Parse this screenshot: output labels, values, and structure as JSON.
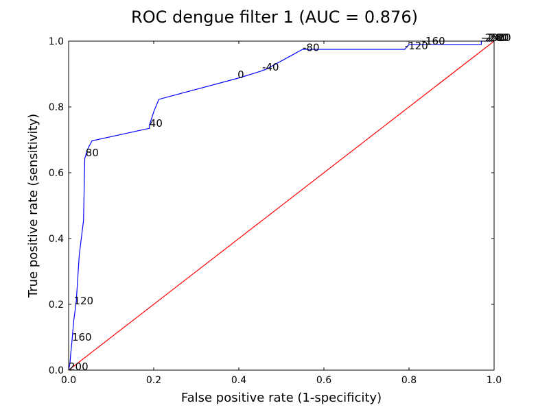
{
  "chart_data": {
    "type": "line",
    "title": "ROC dengue filter 1 (AUC = 0.876)",
    "xlabel": "False positive rate (1-specificity)",
    "ylabel": "True positive rate (sensitivity)",
    "xlim": [
      0.0,
      1.0
    ],
    "ylim": [
      0.0,
      1.0
    ],
    "x_ticks": [
      "0.0",
      "0.2",
      "0.4",
      "0.6",
      "0.8",
      "1.0"
    ],
    "y_ticks": [
      "0.0",
      "0.2",
      "0.4",
      "0.6",
      "0.8",
      "1.0"
    ],
    "grid": false,
    "series": [
      {
        "color": "#0000ff",
        "x": [
          0.0,
          0.003,
          0.005,
          0.008,
          0.012,
          0.018,
          0.025,
          0.035,
          0.038,
          0.04,
          0.042,
          0.048,
          0.055,
          0.19,
          0.19,
          0.2,
          0.212,
          0.4,
          0.45,
          0.465,
          0.55,
          0.79,
          0.8,
          0.97,
          0.97,
          1.0
        ],
        "y": [
          0.0,
          0.02,
          0.05,
          0.09,
          0.15,
          0.21,
          0.35,
          0.455,
          0.645,
          0.65,
          0.665,
          0.68,
          0.697,
          0.735,
          0.745,
          0.785,
          0.823,
          0.888,
          0.908,
          0.915,
          0.975,
          0.975,
          0.99,
          0.99,
          1.0,
          1.0
        ]
      },
      {
        "color": "#ff0000",
        "x": [
          0.0,
          1.0
        ],
        "y": [
          0.0,
          1.0
        ]
      }
    ],
    "annotations": [
      {
        "text": "200",
        "x": 0.0,
        "y": 0.0
      },
      {
        "text": "160",
        "x": 0.008,
        "y": 0.09
      },
      {
        "text": "120",
        "x": 0.012,
        "y": 0.2
      },
      {
        "text": "80",
        "x": 0.04,
        "y": 0.65
      },
      {
        "text": "40",
        "x": 0.19,
        "y": 0.74
      },
      {
        "text": "0",
        "x": 0.397,
        "y": 0.888
      },
      {
        "text": "-40",
        "x": 0.455,
        "y": 0.91
      },
      {
        "text": "-80",
        "x": 0.55,
        "y": 0.97
      },
      {
        "text": "-120",
        "x": 0.79,
        "y": 0.975
      },
      {
        "text": "-160",
        "x": 0.83,
        "y": 0.99
      },
      {
        "text": "-200",
        "x": 0.97,
        "y": 1.0
      },
      {
        "text": "-240",
        "x": 0.975,
        "y": 1.0
      },
      {
        "text": "-280",
        "x": 0.98,
        "y": 1.0
      },
      {
        "text": "-320",
        "x": 0.985,
        "y": 1.0
      }
    ]
  }
}
